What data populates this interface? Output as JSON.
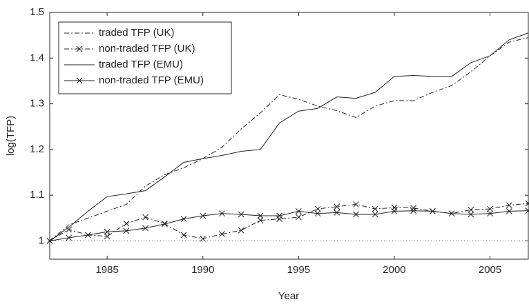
{
  "chart_data": {
    "type": "line",
    "xlabel": "Year",
    "ylabel": "log(TFP)",
    "x": [
      1982,
      1983,
      1984,
      1985,
      1986,
      1987,
      1988,
      1989,
      1990,
      1991,
      1992,
      1993,
      1994,
      1995,
      1996,
      1997,
      1998,
      1999,
      2000,
      2001,
      2002,
      2003,
      2004,
      2005,
      2006,
      2007
    ],
    "xlim": [
      1982,
      2007
    ],
    "xticks": [
      1985,
      1990,
      1995,
      2000,
      2005
    ],
    "ylim": [
      0.96,
      1.5
    ],
    "yticks": [
      1,
      1.1,
      1.2,
      1.3,
      1.4,
      1.5
    ],
    "reference_line": 1,
    "legend": "upper left",
    "grid": false,
    "series": [
      {
        "name": "traded TFP (UK)",
        "color": "#222222",
        "dash": "dashdot",
        "marker": "none",
        "values": [
          1.0,
          1.035,
          1.05,
          1.065,
          1.08,
          1.12,
          1.145,
          1.16,
          1.18,
          1.205,
          1.245,
          1.28,
          1.32,
          1.31,
          1.295,
          1.285,
          1.27,
          1.295,
          1.307,
          1.307,
          1.325,
          1.34,
          1.37,
          1.405,
          1.435,
          1.445
        ]
      },
      {
        "name": "non-traded TFP (UK)",
        "color": "#222222",
        "dash": "dashdot",
        "marker": "x",
        "values": [
          1.0,
          1.025,
          1.013,
          1.01,
          1.038,
          1.052,
          1.038,
          1.013,
          1.005,
          1.015,
          1.023,
          1.045,
          1.048,
          1.052,
          1.07,
          1.075,
          1.08,
          1.07,
          1.073,
          1.072,
          1.065,
          1.06,
          1.068,
          1.07,
          1.078,
          1.082
        ]
      },
      {
        "name": "traded TFP (EMU)",
        "color": "#222222",
        "dash": "solid",
        "marker": "none",
        "values": [
          1.0,
          1.03,
          1.065,
          1.097,
          1.103,
          1.11,
          1.14,
          1.172,
          1.18,
          1.187,
          1.196,
          1.2,
          1.258,
          1.284,
          1.29,
          1.315,
          1.312,
          1.325,
          1.36,
          1.362,
          1.36,
          1.36,
          1.39,
          1.405,
          1.44,
          1.455
        ]
      },
      {
        "name": "non-traded TFP (EMU)",
        "color": "#222222",
        "dash": "solid",
        "marker": "x",
        "values": [
          1.0,
          1.007,
          1.013,
          1.02,
          1.022,
          1.028,
          1.037,
          1.048,
          1.055,
          1.06,
          1.058,
          1.055,
          1.055,
          1.065,
          1.06,
          1.062,
          1.058,
          1.058,
          1.065,
          1.066,
          1.065,
          1.06,
          1.058,
          1.06,
          1.065,
          1.066
        ]
      }
    ]
  }
}
